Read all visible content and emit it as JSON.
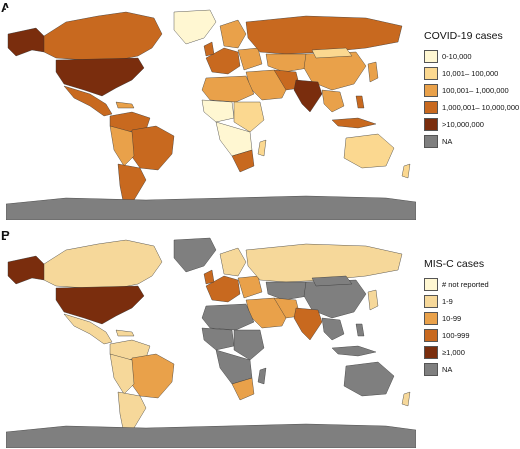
{
  "panels": [
    {
      "letter": "A",
      "legend_title": "COVID-19 cases",
      "legend": [
        {
          "label": "0-10,000",
          "color": "#fff7d2"
        },
        {
          "label": "10,001– 100,000",
          "color": "#fbd890"
        },
        {
          "label": "100,001– 1,000,000",
          "color": "#e9a14a"
        },
        {
          "label": "1,000,001– 10,000,000",
          "color": "#c8691f"
        },
        {
          "label": ">10,000,000",
          "color": "#7a2d0d"
        },
        {
          "label": "NA",
          "color": "#7f7f7f"
        }
      ]
    },
    {
      "letter": "B",
      "legend_title": "MIS-C cases",
      "legend": [
        {
          "label": "# not reported",
          "color": "#fff7d2"
        },
        {
          "label": "1-9",
          "color": "#f6d89a"
        },
        {
          "label": "10-99",
          "color": "#e9a14a"
        },
        {
          "label": "100-999",
          "color": "#c8691f"
        },
        {
          "label": "≥1,000",
          "color": "#7a2d0d"
        },
        {
          "label": "NA",
          "color": "#7f7f7f"
        }
      ]
    }
  ]
}
